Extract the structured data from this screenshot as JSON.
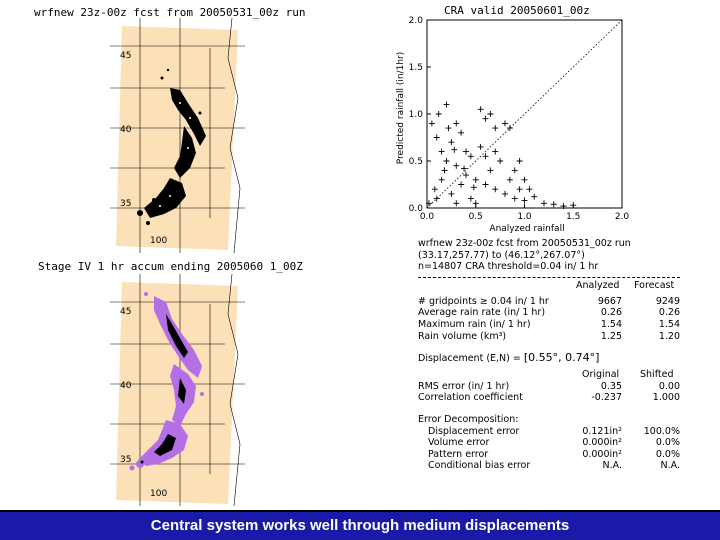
{
  "map_top": {
    "title": "wrfnew 23z-00z fcst from 20050531_00z run",
    "lat_labels": [
      "45",
      "40",
      "35"
    ],
    "lon_label": "100"
  },
  "map_bottom": {
    "title": "Stage IV 1 hr accum ending 2005060 1_00Z",
    "lat_labels": [
      "45",
      "40",
      "35"
    ],
    "lon_label": "100"
  },
  "scatter": {
    "title": "CRA valid 20050601_00z",
    "xlabel": "Analyzed rainfall",
    "ylabel": "Predicted rainfall (in/1hr)"
  },
  "chart_data": {
    "type": "scatter",
    "title": "CRA valid 20050601_00z",
    "xlabel": "Analyzed rainfall",
    "ylabel": "Predicted rainfall (in/1hr)",
    "xlim": [
      0.0,
      2.0
    ],
    "ylim": [
      0.0,
      2.0
    ],
    "x_ticks": [
      "0.0",
      "0.5",
      "1.0",
      "1.5",
      "2.0"
    ],
    "y_ticks": [
      "0.0",
      "0.5",
      "1.0",
      "1.5",
      "2.0"
    ],
    "reference_line": "1:1 dotted diagonal",
    "points": [
      [
        0.05,
        0.9
      ],
      [
        0.1,
        0.75
      ],
      [
        0.15,
        0.6
      ],
      [
        0.2,
        0.5
      ],
      [
        0.25,
        0.7
      ],
      [
        0.3,
        0.45
      ],
      [
        0.35,
        0.8
      ],
      [
        0.4,
        0.35
      ],
      [
        0.45,
        0.55
      ],
      [
        0.5,
        0.3
      ],
      [
        0.55,
        0.65
      ],
      [
        0.6,
        0.25
      ],
      [
        0.65,
        0.4
      ],
      [
        0.7,
        0.2
      ],
      [
        0.75,
        0.5
      ],
      [
        0.8,
        0.15
      ],
      [
        0.85,
        0.3
      ],
      [
        0.9,
        0.1
      ],
      [
        0.95,
        0.2
      ],
      [
        1.0,
        0.08
      ],
      [
        1.1,
        0.12
      ],
      [
        1.2,
        0.05
      ],
      [
        1.3,
        0.04
      ],
      [
        1.4,
        0.02
      ],
      [
        1.5,
        0.03
      ],
      [
        0.6,
        0.95
      ],
      [
        0.7,
        0.85
      ],
      [
        0.55,
        1.05
      ],
      [
        0.65,
        1.0
      ],
      [
        0.8,
        0.9
      ],
      [
        0.85,
        0.85
      ],
      [
        0.2,
        1.1
      ],
      [
        0.12,
        1.0
      ],
      [
        0.08,
        0.2
      ],
      [
        0.15,
        0.3
      ],
      [
        0.25,
        0.15
      ],
      [
        0.35,
        0.25
      ],
      [
        0.45,
        0.1
      ],
      [
        0.02,
        0.05
      ],
      [
        0.1,
        0.1
      ],
      [
        0.3,
        0.05
      ],
      [
        0.5,
        0.05
      ],
      [
        0.4,
        0.6
      ],
      [
        0.3,
        0.9
      ],
      [
        0.22,
        0.85
      ],
      [
        0.18,
        0.4
      ],
      [
        0.6,
        0.55
      ],
      [
        0.7,
        0.6
      ],
      [
        1.0,
        0.3
      ],
      [
        1.05,
        0.2
      ],
      [
        0.9,
        0.4
      ],
      [
        0.95,
        0.5
      ],
      [
        0.28,
        0.62
      ],
      [
        0.38,
        0.42
      ],
      [
        0.48,
        0.22
      ]
    ]
  },
  "stats": {
    "header_line1": "wrfnew 23z-00z fcst from 20050531_00z run",
    "header_line2": "(33.17,257.77) to (46.12°,267.07°)",
    "header_line3": "n=14807    CRA threshold=0.04 in/ 1 hr",
    "col_analyzed": "Analyzed",
    "col_forecast": "Forecast",
    "rows": [
      {
        "label": "# gridpoints ≥ 0.04 in/ 1 hr",
        "analyzed": "9667",
        "forecast": "9249"
      },
      {
        "label": "Average rain rate (in/ 1 hr)",
        "analyzed": "0.26",
        "forecast": "0.26"
      },
      {
        "label": "Maximum rain (in/ 1 hr)",
        "analyzed": "1.54",
        "forecast": "1.54"
      },
      {
        "label": "Rain volume (km³)",
        "analyzed": "1.25",
        "forecast": "1.20"
      }
    ],
    "displacement_label": "Displacement (E,N) =",
    "displacement_value": "[0.55°, 0.74°]",
    "col_original": "Original",
    "col_shifted": "Shifted",
    "rows2": [
      {
        "label": "RMS error (in/ 1 hr)",
        "original": "0.35",
        "shifted": "0.00"
      },
      {
        "label": "Correlation coefficient",
        "original": "-0.237",
        "shifted": "1.000"
      }
    ],
    "error_title": "Error Decomposition:",
    "rows3": [
      {
        "label": "Displacement error",
        "value": "0.121in²",
        "pct": "100.0%"
      },
      {
        "label": "Volume error",
        "value": "0.000in²",
        "pct": "0.0%"
      },
      {
        "label": "Pattern error",
        "value": "0.000in²",
        "pct": "0.0%"
      },
      {
        "label": "Conditional bias error",
        "value": "N.A.",
        "pct": "N.A."
      }
    ]
  },
  "footer": {
    "caption": "Central system works well through medium displacements"
  }
}
